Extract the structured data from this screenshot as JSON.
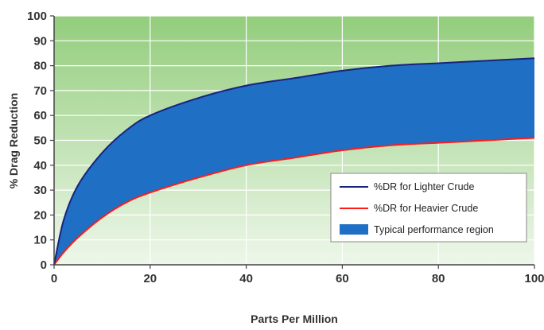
{
  "chart_data": {
    "type": "area",
    "xlabel": "Parts Per Million",
    "ylabel": "% Drag Reduction",
    "xlim": [
      0,
      100
    ],
    "ylim": [
      0,
      100
    ],
    "x_ticks": [
      "0",
      "20",
      "40",
      "60",
      "80",
      "100"
    ],
    "y_ticks": [
      "0",
      "10",
      "20",
      "30",
      "40",
      "50",
      "60",
      "70",
      "80",
      "90",
      "100"
    ],
    "grid": true,
    "legend_position": "bottom-right",
    "series": [
      {
        "name": "%DR for Lighter Crude",
        "color": "#1a237e",
        "x": [
          0,
          2,
          5,
          10,
          15,
          20,
          30,
          40,
          50,
          60,
          70,
          80,
          90,
          100
        ],
        "y": [
          0,
          18,
          32,
          45,
          54,
          60,
          67,
          72,
          75,
          78,
          80,
          81,
          82,
          83
        ]
      },
      {
        "name": "%DR for Heavier Crude",
        "color": "#ff1a1a",
        "x": [
          0,
          2,
          5,
          10,
          15,
          20,
          30,
          40,
          50,
          60,
          70,
          80,
          90,
          100
        ],
        "y": [
          0,
          5,
          11,
          19,
          25,
          29,
          35,
          40,
          43,
          46,
          48,
          49,
          50,
          51
        ]
      }
    ],
    "region": {
      "name": "Typical performance region",
      "color": "#1f6fc4"
    }
  }
}
